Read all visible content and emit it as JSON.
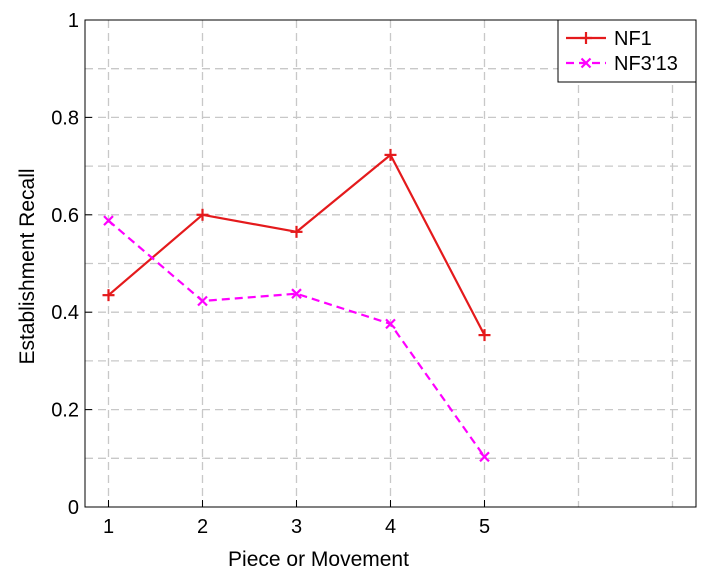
{
  "chart_data": {
    "type": "line",
    "title": "",
    "xlabel": "Piece or Movement",
    "ylabel": "Establishment Recall",
    "xlim": [
      0.75,
      7.25
    ],
    "ylim": [
      0,
      1
    ],
    "x_ticks": [
      1,
      2,
      3,
      4,
      5
    ],
    "x_tick_labels": [
      "1",
      "2",
      "3",
      "4",
      "5"
    ],
    "y_ticks": [
      0,
      0.2,
      0.4,
      0.6,
      0.8,
      1
    ],
    "y_tick_labels": [
      "0",
      "0.2",
      "0.4",
      "0.6",
      "0.8",
      "1"
    ],
    "y_minor_gridlines": [
      0.1,
      0.3,
      0.5,
      0.7,
      0.9
    ],
    "grid": true,
    "legend_position": "top-right",
    "x": [
      1,
      2,
      3,
      4,
      5
    ],
    "series": [
      {
        "name": "NF1",
        "values": [
          0.435,
          0.6,
          0.565,
          0.723,
          0.353
        ],
        "color": "#e41a1c",
        "marker": "plus",
        "line_style": "solid"
      },
      {
        "name": "NF3'13",
        "values": [
          0.588,
          0.423,
          0.438,
          0.376,
          0.103
        ],
        "color": "#ff00ff",
        "marker": "x",
        "line_style": "dashed"
      }
    ]
  }
}
